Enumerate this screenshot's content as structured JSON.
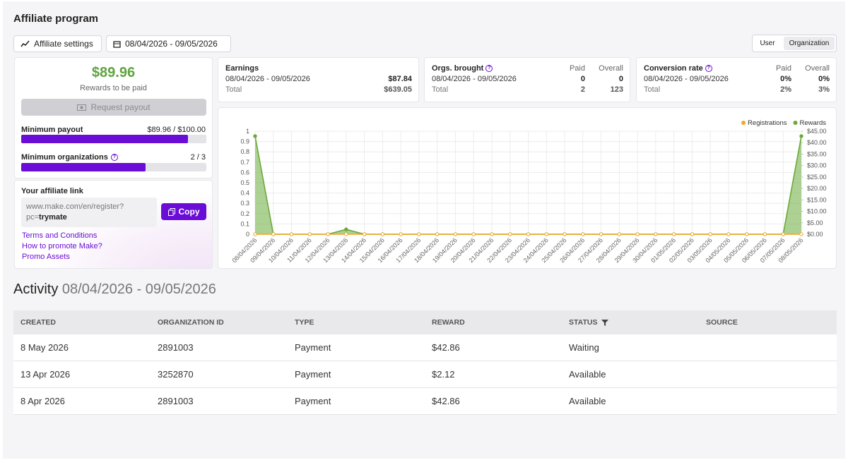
{
  "header": {
    "title": "Affiliate program"
  },
  "toolbar": {
    "settings": "Affiliate settings",
    "date_range": "08/04/2026 - 09/05/2026",
    "views": [
      "User",
      "Organization"
    ]
  },
  "payout": {
    "amount": "$89.96",
    "caption": "Rewards to be paid",
    "button": "Request payout",
    "minimum_payout": {
      "label": "Minimum payout",
      "value": "$89.96 / $100.00"
    },
    "minimum_orgs": {
      "label": "Minimum organizations",
      "value": "2 / 3"
    }
  },
  "link": {
    "title": "Your affiliate link",
    "url": "www.make.com/en/register?",
    "param": "pc=",
    "code": "trymate",
    "copy": "Copy",
    "links": [
      "Terms and Conditions",
      "How to promote Make?",
      "Promo Assets"
    ]
  },
  "stats": [
    {
      "title": "Earnings",
      "rows": [
        [
          "08/04/2026 - 09/05/2026",
          "$87.84"
        ],
        [
          "Total",
          "$639.05"
        ]
      ]
    },
    {
      "title": "Orgs. brought",
      "columns": [
        "Paid",
        "Overall"
      ],
      "rows": [
        [
          "08/04/2026 - 09/05/2026",
          "0",
          "0"
        ],
        [
          "Total",
          "2",
          "123"
        ]
      ]
    },
    {
      "title": "Conversion rate",
      "columns": [
        "Paid",
        "Overall"
      ],
      "rows": [
        [
          "08/04/2026 - 09/05/2026",
          "0%",
          "0%"
        ],
        [
          "Total",
          "2%",
          "3%"
        ]
      ]
    }
  ],
  "chart_data": {
    "type": "line",
    "categories": [
      "08/04/2026",
      "09/04/2026",
      "10/04/2026",
      "11/04/2026",
      "12/04/2026",
      "13/04/2026",
      "14/04/2026",
      "15/04/2026",
      "16/04/2026",
      "17/04/2026",
      "18/04/2026",
      "19/04/2026",
      "20/04/2026",
      "21/04/2026",
      "22/04/2026",
      "23/04/2026",
      "24/04/2026",
      "25/04/2026",
      "26/04/2026",
      "27/04/2026",
      "28/04/2026",
      "29/04/2026",
      "30/04/2026",
      "01/05/2026",
      "02/05/2026",
      "03/05/2026",
      "04/05/2026",
      "05/05/2026",
      "06/05/2026",
      "07/05/2026",
      "08/05/2026"
    ],
    "series": [
      {
        "name": "Registrations",
        "color": "#f5a623",
        "values": [
          0,
          0,
          0,
          0,
          0,
          0,
          0,
          0,
          0,
          0,
          0,
          0,
          0,
          0,
          0,
          0,
          0,
          0,
          0,
          0,
          0,
          0,
          0,
          0,
          0,
          0,
          0,
          0,
          0,
          0,
          0
        ]
      },
      {
        "name": "Rewards",
        "color": "#6aaa3a",
        "axis": "y2",
        "area": true,
        "values": [
          42.86,
          0,
          0,
          0,
          0,
          2.12,
          0,
          0,
          0,
          0,
          0,
          0,
          0,
          0,
          0,
          0,
          0,
          0,
          0,
          0,
          0,
          0,
          0,
          0,
          0,
          0,
          0,
          0,
          0,
          0,
          42.86
        ]
      }
    ],
    "ylim": [
      0,
      1
    ],
    "yticks": [
      0,
      0.1,
      0.2,
      0.3,
      0.4,
      0.5,
      0.6,
      0.7,
      0.8,
      0.9,
      1
    ],
    "y2lim": [
      0,
      45
    ],
    "y2ticks": [
      {
        "value": 0,
        "label": "$0.00"
      },
      {
        "value": 5,
        "label": "$5.00"
      },
      {
        "value": 10,
        "label": "$10.00"
      },
      {
        "value": 15,
        "label": "$15.00"
      },
      {
        "value": 20,
        "label": "$20.00"
      },
      {
        "value": 25,
        "label": "$25.00"
      },
      {
        "value": 30,
        "label": "$30.00"
      },
      {
        "value": 35,
        "label": "$35.00"
      },
      {
        "value": 40,
        "label": "$40.00"
      },
      {
        "value": 45,
        "label": "$45.00"
      }
    ],
    "grid": true,
    "legend": "top-right"
  },
  "activity": {
    "title": "Activity",
    "period": "08/04/2026 - 09/05/2026",
    "columns": [
      "CREATED",
      "ORGANIZATION ID",
      "TYPE",
      "REWARD",
      "STATUS",
      "SOURCE"
    ],
    "rows": [
      [
        "8 May 2026",
        "2891003",
        "Payment",
        "$42.86",
        "Waiting"
      ],
      [
        "13 Apr 2026",
        "3252870",
        "Payment",
        "$2.12",
        "Available"
      ],
      [
        "8 Apr 2026",
        "2891003",
        "Payment",
        "$42.86",
        "Available"
      ]
    ]
  }
}
